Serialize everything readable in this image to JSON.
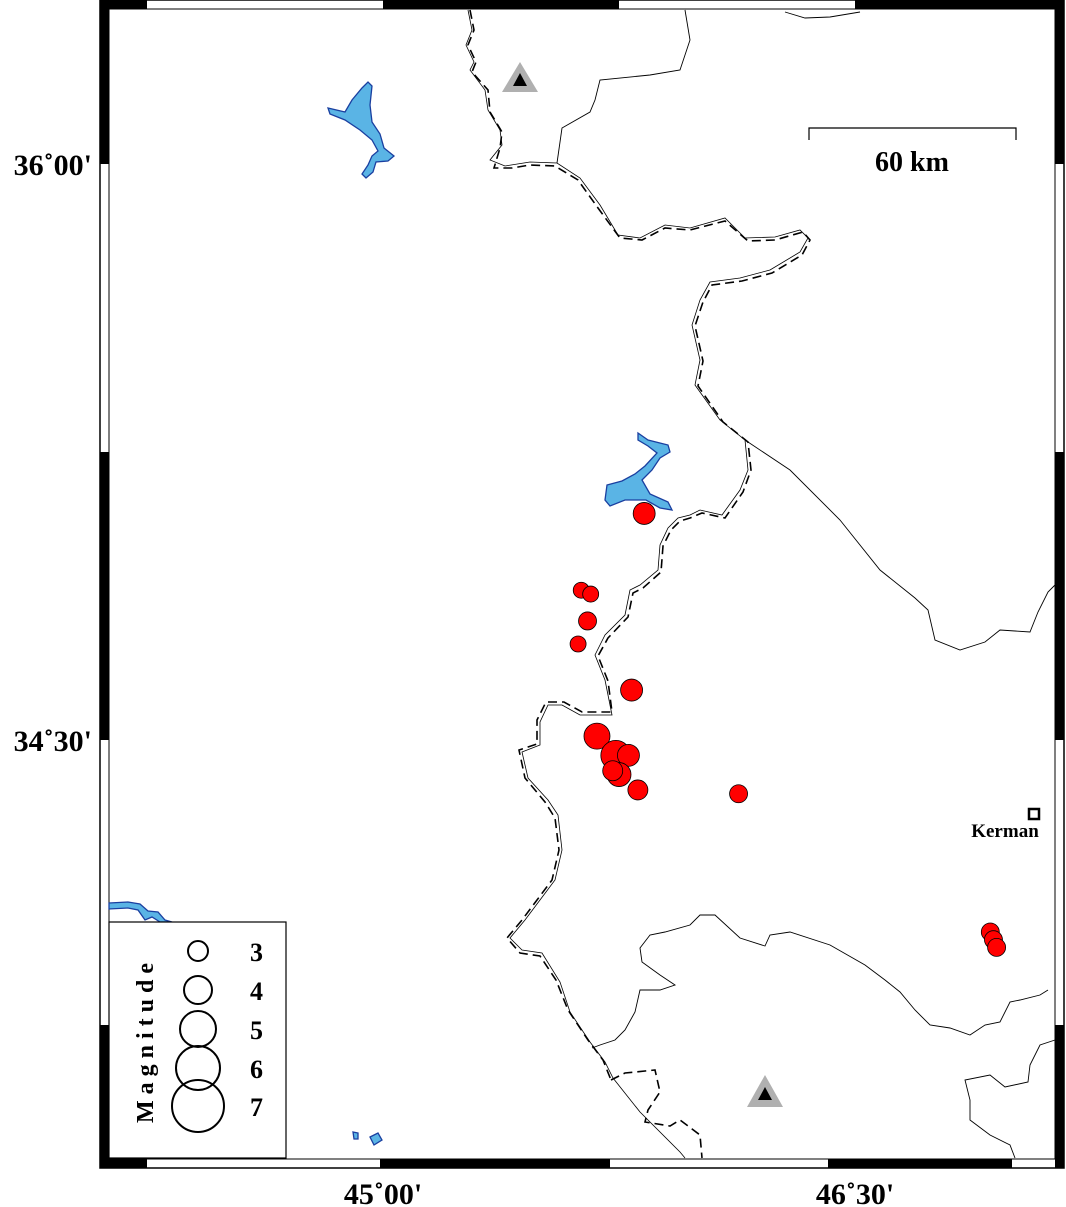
{
  "map": {
    "axis_labels": {
      "lat_top": "36˚00'",
      "lat_bottom": "34˚30'",
      "lon_left": "45˚00'",
      "lon_right": "46˚30'"
    },
    "scale_bar": {
      "label": "60 km"
    },
    "city": {
      "name": "Kerman",
      "marker": "square-icon"
    },
    "stations": [
      {
        "marker": "triangle-icon",
        "color": "#b0b0b0",
        "inner_color": "#000000"
      },
      {
        "marker": "triangle-icon",
        "color": "#b0b0b0",
        "inner_color": "#000000"
      }
    ],
    "colors": {
      "event": "#ff0000",
      "water": "#5ab4e5",
      "water_outline": "#1a3fa0"
    },
    "events": [
      {
        "lon": 45.83,
        "lat": 35.09,
        "mag": 3.25
      },
      {
        "lon": 45.63,
        "lat": 34.89,
        "mag": 2.5
      },
      {
        "lon": 45.66,
        "lat": 34.88,
        "mag": 2.5
      },
      {
        "lon": 45.65,
        "lat": 34.81,
        "mag": 2.75
      },
      {
        "lon": 45.62,
        "lat": 34.75,
        "mag": 2.5
      },
      {
        "lon": 45.79,
        "lat": 34.63,
        "mag": 3.25
      },
      {
        "lon": 45.68,
        "lat": 34.51,
        "mag": 3.75
      },
      {
        "lon": 45.74,
        "lat": 34.46,
        "mag": 4.25
      },
      {
        "lon": 45.78,
        "lat": 34.46,
        "mag": 3.25
      },
      {
        "lon": 45.75,
        "lat": 34.41,
        "mag": 3.5
      },
      {
        "lon": 45.73,
        "lat": 34.42,
        "mag": 3.0
      },
      {
        "lon": 45.81,
        "lat": 34.37,
        "mag": 3.0
      },
      {
        "lon": 46.13,
        "lat": 34.36,
        "mag": 2.75
      },
      {
        "lon": 46.93,
        "lat": 34.0,
        "mag": 2.75
      },
      {
        "lon": 46.94,
        "lat": 33.98,
        "mag": 2.75
      },
      {
        "lon": 46.95,
        "lat": 33.96,
        "mag": 2.75
      }
    ],
    "legend": {
      "title": "Magnitude",
      "items": [
        {
          "mag": 3,
          "label": "3"
        },
        {
          "mag": 4,
          "label": "4"
        },
        {
          "mag": 5,
          "label": "5"
        },
        {
          "mag": 6,
          "label": "6"
        },
        {
          "mag": 7,
          "label": "7"
        }
      ]
    }
  }
}
